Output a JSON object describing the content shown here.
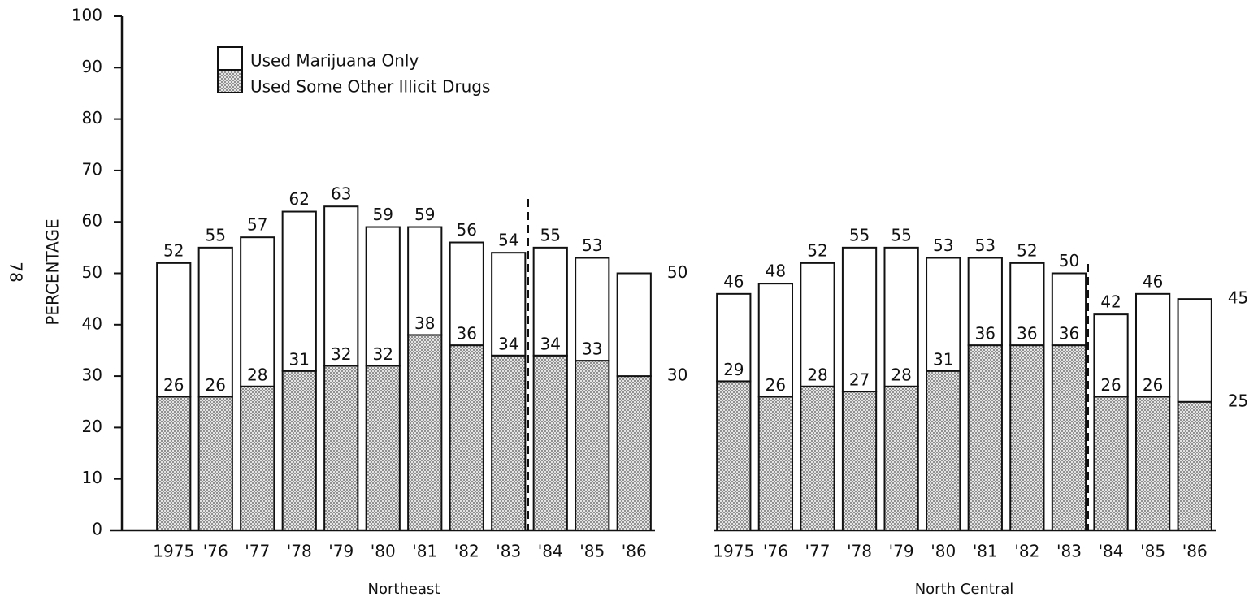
{
  "page_number": "78",
  "chart_data": [
    {
      "type": "bar",
      "stacked": true,
      "xlabel": "Northeast",
      "ylabel": "PERCENTAGE",
      "ylim": [
        0,
        100
      ],
      "yticks": [
        0,
        10,
        20,
        30,
        40,
        50,
        60,
        70,
        80,
        90,
        100
      ],
      "categories": [
        "1975",
        "'76",
        "'77",
        "'78",
        "'79",
        "'80",
        "'81",
        "'82",
        "'83",
        "'84",
        "'85",
        "'86"
      ],
      "series": [
        {
          "name": "Used Marijuana Only",
          "color": "#ffffff",
          "values": [
            26,
            29,
            29,
            31,
            31,
            27,
            21,
            20,
            20,
            21,
            20,
            20
          ]
        },
        {
          "name": "Used Some Other Illicit Drugs",
          "color": "#c8c8c8",
          "values": [
            26,
            26,
            28,
            31,
            32,
            32,
            38,
            36,
            34,
            34,
            33,
            30
          ]
        }
      ],
      "totals": [
        52,
        55,
        57,
        62,
        63,
        59,
        59,
        56,
        54,
        55,
        53,
        50
      ]
    },
    {
      "type": "bar",
      "stacked": true,
      "xlabel": "North Central",
      "ylim": [
        0,
        100
      ],
      "categories": [
        "1975",
        "'76",
        "'77",
        "'78",
        "'79",
        "'80",
        "'81",
        "'82",
        "'83",
        "'84",
        "'85",
        "'86"
      ],
      "series": [
        {
          "color": "#ffffff",
          "values": [
            17,
            22,
            24,
            28,
            27,
            22,
            17,
            16,
            14,
            16,
            20,
            20
          ]
        },
        {
          "color": "#c8c8c8",
          "values": [
            29,
            26,
            28,
            27,
            28,
            31,
            36,
            36,
            36,
            26,
            26,
            25
          ]
        }
      ],
      "totals": [
        46,
        48,
        52,
        55,
        55,
        53,
        53,
        52,
        50,
        42,
        46,
        45
      ]
    }
  ]
}
